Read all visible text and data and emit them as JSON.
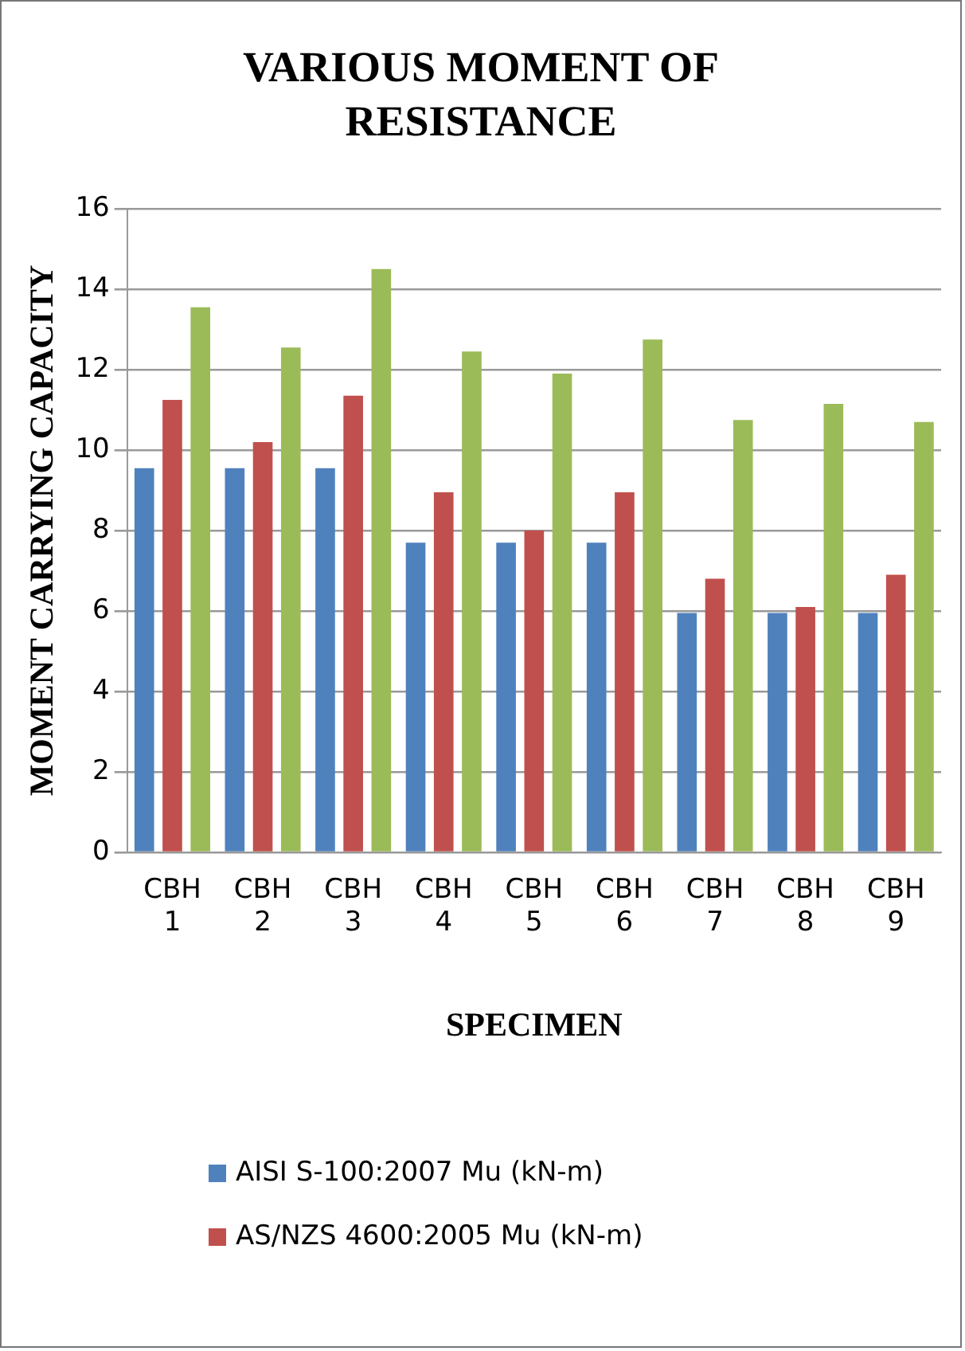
{
  "chart_data": {
    "type": "bar",
    "title": "VARIOUS MOMENT OF RESISTANCE",
    "xlabel": "SPECIMEN",
    "ylabel": "MOMENT CARRYING CAPACITY",
    "categories": [
      "CBH 1",
      "CBH 2",
      "CBH 3",
      "CBH 4",
      "CBH 5",
      "CBH 6",
      "CBH 7",
      "CBH 8",
      "CBH 9"
    ],
    "series": [
      {
        "name": "AISI S-100:2007 Mu (kN-m)",
        "color": "#4f81bd",
        "values": [
          9.55,
          9.55,
          9.55,
          7.7,
          7.7,
          7.7,
          5.95,
          5.95,
          5.95
        ]
      },
      {
        "name": "AS/NZS 4600:2005 Mu (kN-m)",
        "color": "#c0504d",
        "values": [
          11.25,
          10.2,
          11.35,
          8.95,
          8.0,
          8.95,
          6.8,
          6.1,
          6.9
        ]
      },
      {
        "color": "#9bbb59",
        "values": [
          13.55,
          12.55,
          14.5,
          12.45,
          11.9,
          12.75,
          10.75,
          11.15,
          10.7
        ]
      }
    ],
    "ylim": [
      0,
      16
    ],
    "yticks": [
      0,
      2,
      4,
      6,
      8,
      10,
      12,
      14,
      16
    ],
    "grid": "y",
    "legend": "bottom"
  }
}
